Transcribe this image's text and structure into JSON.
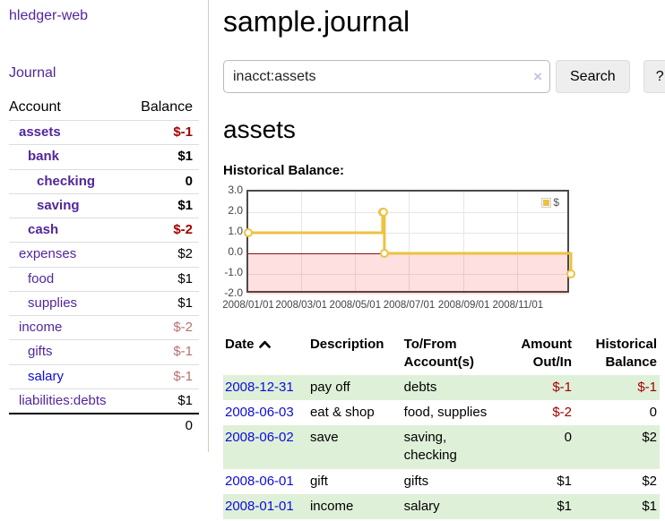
{
  "app": {
    "brand": "hledger-web",
    "nav_journal": "Journal"
  },
  "sidebar": {
    "headers": {
      "account": "Account",
      "balance": "Balance"
    },
    "accounts": [
      {
        "name": "assets",
        "depth": 1,
        "balance": "$-1",
        "bold": true,
        "tone": "neg-strong",
        "link": "purple"
      },
      {
        "name": "bank",
        "depth": 2,
        "balance": "$1",
        "bold": true,
        "tone": "",
        "link": "purple"
      },
      {
        "name": "checking",
        "depth": 3,
        "balance": "0",
        "bold": true,
        "tone": "",
        "link": "purple"
      },
      {
        "name": "saving",
        "depth": 3,
        "balance": "$1",
        "bold": true,
        "tone": "",
        "link": "purple"
      },
      {
        "name": "cash",
        "depth": 2,
        "balance": "$-2",
        "bold": true,
        "tone": "neg-strong",
        "link": "purple"
      },
      {
        "name": "expenses",
        "depth": 1,
        "balance": "$2",
        "bold": false,
        "tone": "",
        "link": "purple"
      },
      {
        "name": "food",
        "depth": 2,
        "balance": "$1",
        "bold": false,
        "tone": "",
        "link": "purple"
      },
      {
        "name": "supplies",
        "depth": 2,
        "balance": "$1",
        "bold": false,
        "tone": "",
        "link": "purple"
      },
      {
        "name": "income",
        "depth": 1,
        "balance": "$-2",
        "bold": false,
        "tone": "neg-muted",
        "link": "purple"
      },
      {
        "name": "gifts",
        "depth": 2,
        "balance": "$-1",
        "bold": false,
        "tone": "neg-muted",
        "link": "purple"
      },
      {
        "name": "salary",
        "depth": 2,
        "balance": "$-1",
        "bold": false,
        "tone": "neg-muted",
        "link": "blue"
      },
      {
        "name": "liabilities:debts",
        "depth": 1,
        "balance": "$1",
        "bold": false,
        "tone": "",
        "link": "purple"
      }
    ],
    "total": "0"
  },
  "header": {
    "title": "sample.journal"
  },
  "search": {
    "value": "inacct:assets",
    "clear_icon": "×",
    "button_label": "Search",
    "help_label": "?"
  },
  "account_page": {
    "heading": "assets",
    "chart_title": "Historical Balance:"
  },
  "chart_data": {
    "type": "line",
    "title": "Historical Balance:",
    "series": [
      {
        "name": "$",
        "color": "#edc240",
        "step": true,
        "points": [
          [
            "2008-01-01",
            1
          ],
          [
            "2008-06-01",
            2
          ],
          [
            "2008-06-02",
            2
          ],
          [
            "2008-06-03",
            0
          ],
          [
            "2008-12-31",
            -1
          ]
        ]
      }
    ],
    "x_range": [
      "2008-01-01",
      "2008-12-31"
    ],
    "x_ticks": [
      "2008/01/01",
      "2008/03/01",
      "2008/05/01",
      "2008/07/01",
      "2008/09/01",
      "2008/11/01"
    ],
    "y_ticks": [
      3.0,
      2.0,
      1.0,
      0.0,
      -1.0,
      -2.0
    ],
    "ylim": [
      -2,
      3
    ],
    "legend": {
      "label": "$",
      "position": "top-right"
    },
    "grid": true,
    "negative_region": true,
    "zero_line_color": "#8b0e0e"
  },
  "register": {
    "headers": [
      {
        "label": "Date"
      },
      {
        "label": "Description"
      },
      {
        "label": "To/From Account(s)"
      },
      {
        "label": "Amount Out/In"
      },
      {
        "label": "Historical Balance"
      }
    ],
    "rows": [
      {
        "date": "2008-12-31",
        "description": "pay off",
        "accounts": "debts",
        "amount": "$-1",
        "amount_tone": "neg-strong",
        "balance": "$-1",
        "balance_tone": "neg-strong",
        "shade": true
      },
      {
        "date": "2008-06-03",
        "description": "eat & shop",
        "accounts": "food, supplies",
        "amount": "$-2",
        "amount_tone": "neg-strong",
        "balance": "0",
        "balance_tone": "",
        "shade": false
      },
      {
        "date": "2008-06-02",
        "description": "save",
        "accounts": "saving, checking",
        "amount": "0",
        "amount_tone": "",
        "balance": "$2",
        "balance_tone": "",
        "shade": true
      },
      {
        "date": "2008-06-01",
        "description": "gift",
        "accounts": "gifts",
        "amount": "$1",
        "amount_tone": "",
        "balance": "$2",
        "balance_tone": "",
        "shade": false
      },
      {
        "date": "2008-01-01",
        "description": "income",
        "accounts": "salary",
        "amount": "$1",
        "amount_tone": "",
        "balance": "$1",
        "balance_tone": "",
        "shade": true
      }
    ]
  }
}
